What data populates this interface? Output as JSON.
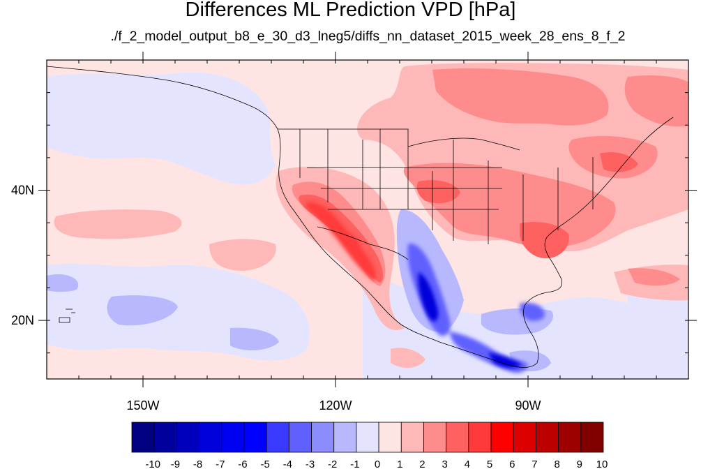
{
  "title": "Differences ML Prediction VPD [hPa]",
  "subtitle": "./f_2_model_output_b8_e_30_d3_lneg5/diffs_nn_dataset_2015_week_28_ens_8_f_2",
  "map": {
    "lon_range": [
      -165,
      -65
    ],
    "lat_range": [
      11,
      60
    ],
    "lon_ticks": [
      {
        "value": -150,
        "label": "150W"
      },
      {
        "value": -120,
        "label": "120W"
      },
      {
        "value": -90,
        "label": "90W"
      }
    ],
    "lat_ticks": [
      {
        "value": 40,
        "label": "40N"
      },
      {
        "value": 20,
        "label": "20N"
      }
    ]
  },
  "colorbar": {
    "labels": [
      "-10",
      "-9",
      "-8",
      "-7",
      "-6",
      "-5",
      "-4",
      "-3",
      "-2",
      "-1",
      "0",
      "1",
      "2",
      "3",
      "4",
      "5",
      "6",
      "7",
      "8",
      "9",
      "10"
    ],
    "colors": [
      "#000080",
      "#00009e",
      "#0000bc",
      "#0000da",
      "#0000f0",
      "#0000ff",
      "#3a3aff",
      "#6060ff",
      "#8c8cff",
      "#b8b8ff",
      "#e4e4ff",
      "#ffe4e4",
      "#ffb8b8",
      "#ff8c8c",
      "#ff6060",
      "#ff3a3a",
      "#ff0000",
      "#dc0000",
      "#bc0000",
      "#9e0000",
      "#800000"
    ]
  }
}
